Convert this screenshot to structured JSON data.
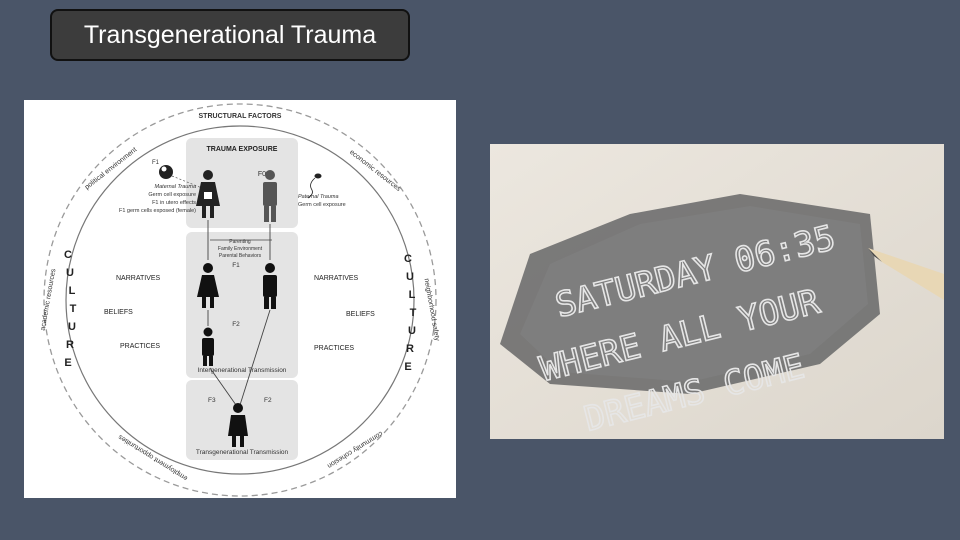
{
  "slide": {
    "title": "Transgenerational Trauma"
  },
  "diagram": {
    "structural_factors": "STRUCTURAL FACTORS",
    "ring_labels": {
      "political": "political environment",
      "economic": "economic resources",
      "academic": "academic resources",
      "neighborhood": "neighborhood safety",
      "employment": "employment opportunities",
      "community": "community cohesion"
    },
    "culture_letters": [
      "C",
      "U",
      "L",
      "T",
      "U",
      "R",
      "E"
    ],
    "trauma_exposure": "TRAUMA EXPOSURE",
    "f0": "F0",
    "f1_top": "F1",
    "f1_mid": "F1",
    "f2_mid": "F2",
    "f3": "F3",
    "f2_bottom": "F2",
    "maternal": {
      "title": "Maternal Trauma",
      "lines": [
        "Germ cell exposure",
        "F1 in utero effects",
        "F1 germ cells exposed (female)"
      ]
    },
    "paternal": {
      "title": "Paternal Trauma",
      "lines": [
        "Germ cell exposure"
      ]
    },
    "parenting_lines": [
      "Parenting",
      "Family Environment",
      "Parental Behaviors"
    ],
    "left_labels": [
      "NARRATIVES",
      "BELIEFS",
      "PRACTICES"
    ],
    "right_labels": [
      "NARRATIVES",
      "BELIEFS",
      "PRACTICES"
    ],
    "intergenerational": "Intergenerational Transmission",
    "transgenerational": "Transgenerational Transmission"
  },
  "photo": {
    "lines": [
      "SATURDAY 06:35",
      "WHERE ALL YOUR",
      "DREAMS COME"
    ]
  },
  "colors": {
    "background": "#4a5568",
    "title_box": "#3c3c3c",
    "box_gray": "#e4e4e4"
  }
}
